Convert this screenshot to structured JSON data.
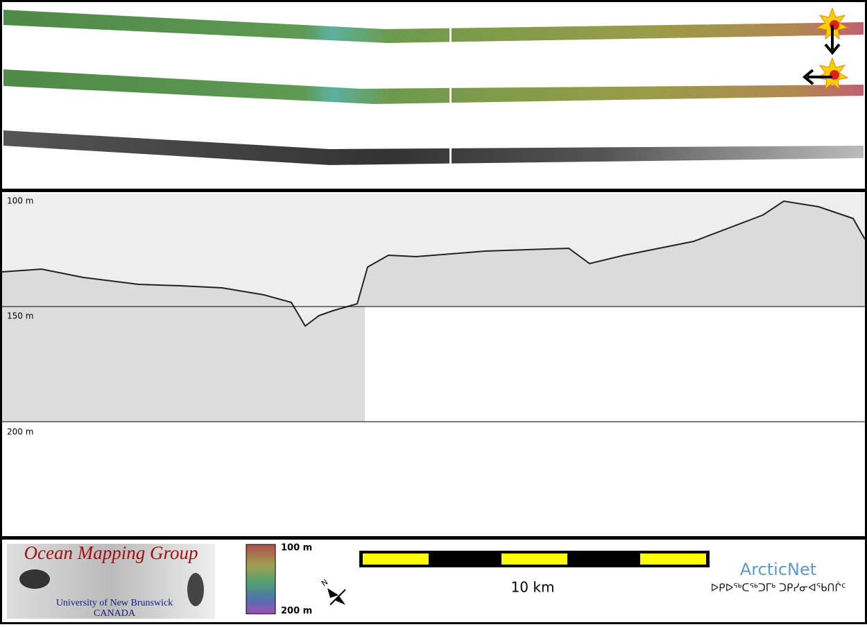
{
  "profile": {
    "depth_labels": [
      "100 m",
      "150 m",
      "200 m"
    ]
  },
  "footer": {
    "logo_title": "Ocean Mapping Group",
    "logo_university": "University of New Brunswick",
    "logo_country": "CANADA",
    "colorbar_top": "100 m",
    "colorbar_bottom": "200 m",
    "scale_label": "10 km",
    "partner_name": "ArcticNet",
    "partner_syllabics": "ᐅᑭᐅᖅᑕᖅᑐᒥᒃ ᑐᑭᓯᓂᐊᖃᑎᒌᑦ"
  }
}
